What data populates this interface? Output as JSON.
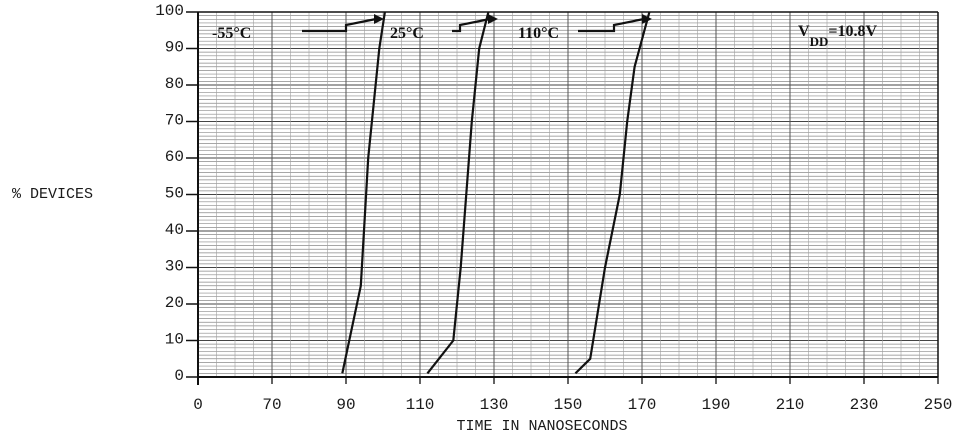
{
  "chart_data": {
    "type": "line",
    "title": "",
    "xlabel": "TIME IN NANOSECONDS",
    "ylabel": "% DEVICES",
    "xlim": [
      50,
      250
    ],
    "ylim": [
      0,
      100
    ],
    "x_ticks": [
      "0",
      "70",
      "90",
      "110",
      "130",
      "150",
      "170",
      "190",
      "210",
      "230",
      "250"
    ],
    "y_ticks": [
      "0",
      "10",
      "20",
      "30",
      "40",
      "50",
      "60",
      "70",
      "80",
      "90",
      "100"
    ],
    "grid": true,
    "annotations": {
      "vdd_main": "V",
      "vdd_sub": "DD",
      "vdd_value": "=10.8V"
    },
    "series": [
      {
        "name": "-55°C",
        "x": [
          89,
          94,
          96,
          99,
          100.5
        ],
        "y": [
          1,
          25,
          60,
          90,
          100
        ]
      },
      {
        "name": "25°C",
        "x": [
          112,
          119,
          121,
          124,
          126,
          128.5
        ],
        "y": [
          1,
          10,
          30,
          70,
          90,
          100
        ]
      },
      {
        "name": "110°C",
        "x": [
          152,
          156,
          160,
          164,
          166,
          168,
          172
        ],
        "y": [
          1,
          5,
          30,
          50,
          70,
          85,
          100
        ]
      }
    ]
  }
}
